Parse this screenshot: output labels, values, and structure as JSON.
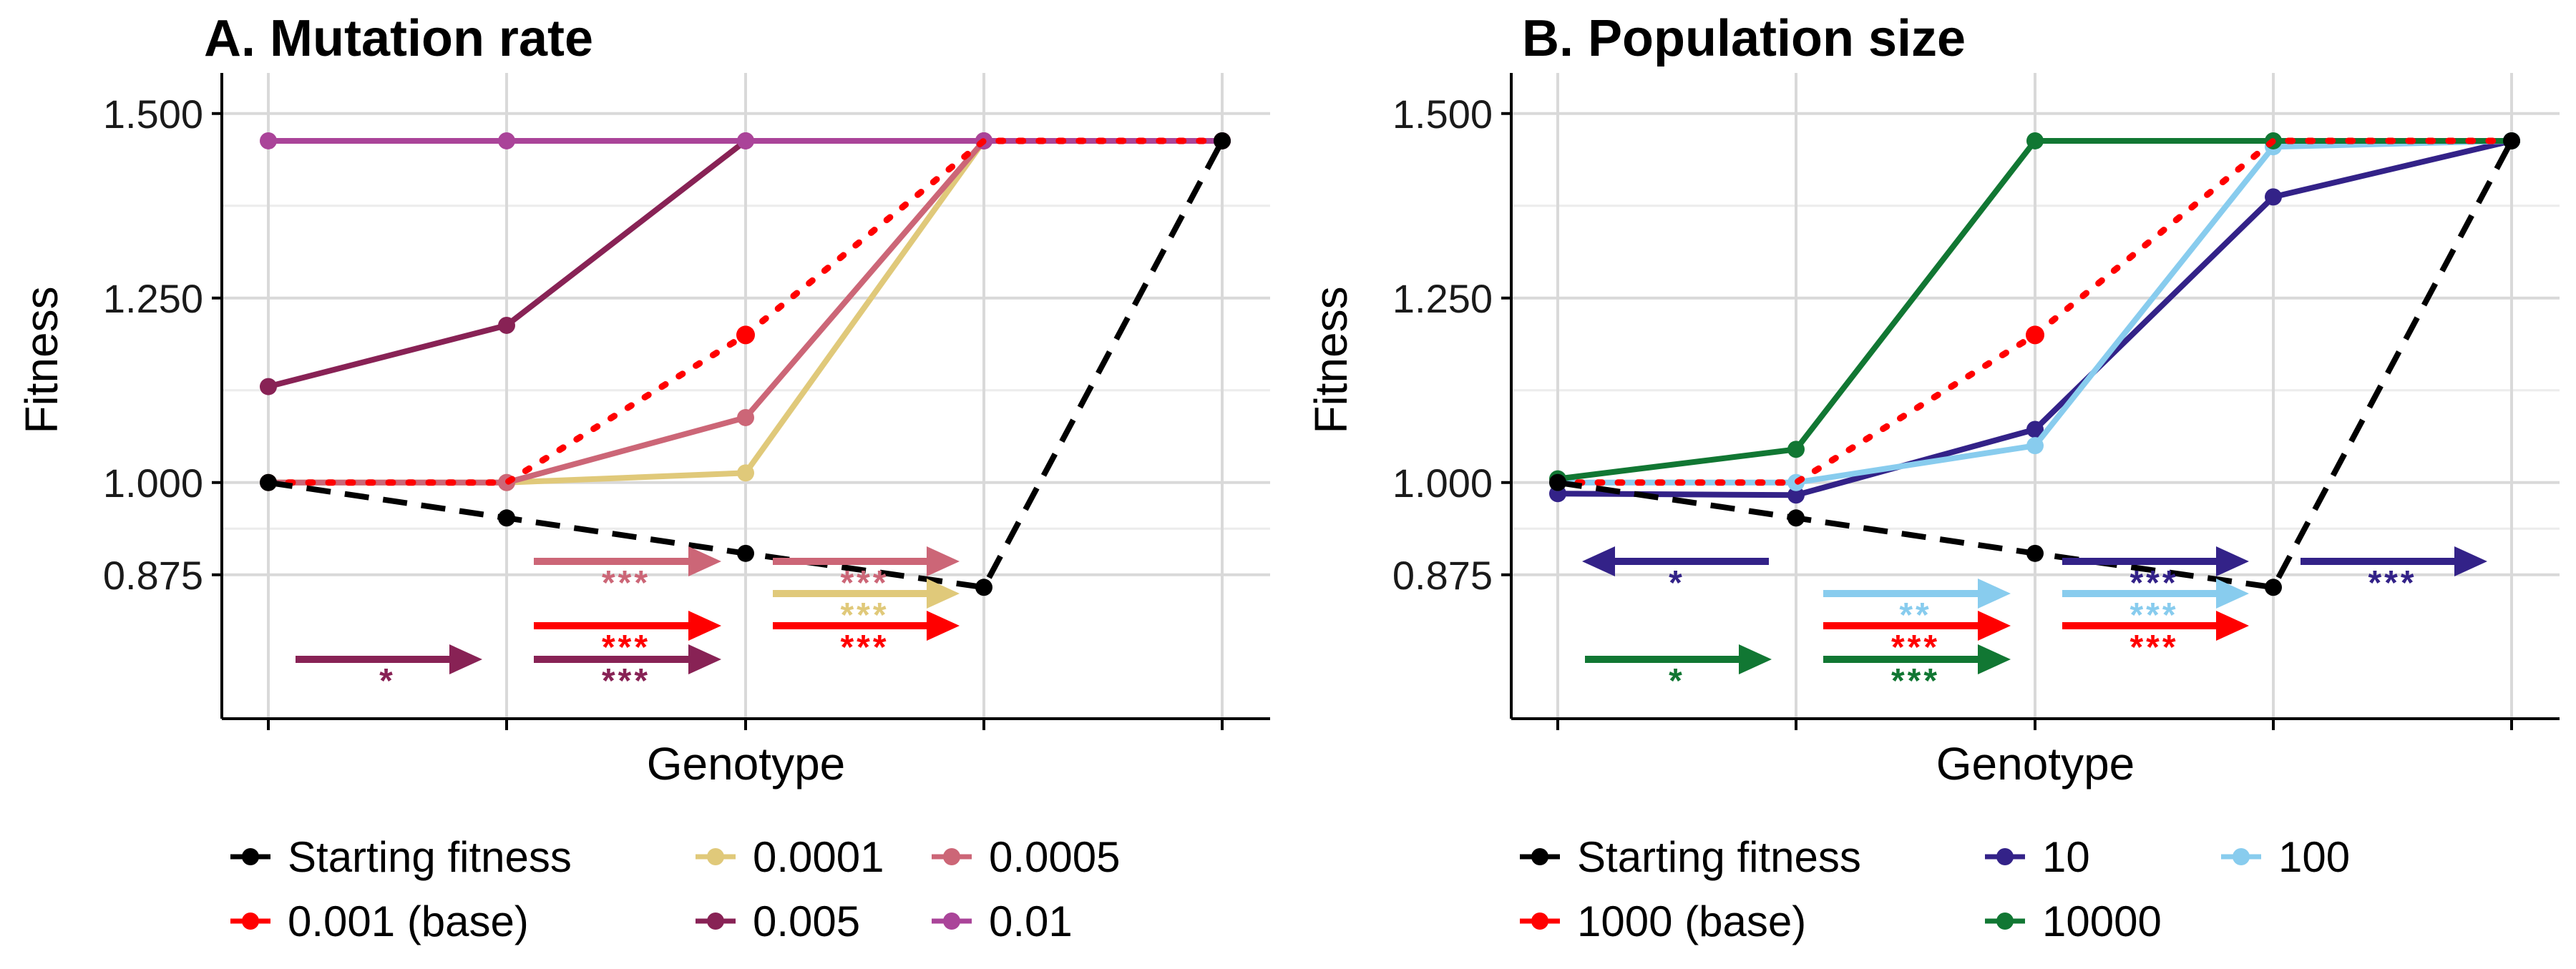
{
  "colors": {
    "starting": "#000000",
    "base": "#FF0000",
    "m0001": "#E0C97A",
    "m0005": "#CC6677",
    "m005": "#882255",
    "m01": "#AA4499",
    "p10": "#332288",
    "p100": "#88CCEE",
    "p10000": "#117733"
  },
  "chart_data": [
    {
      "type": "line",
      "title": "A. Mutation rate",
      "xlabel": "Genotype",
      "ylabel": "Fitness",
      "x": [
        1,
        2,
        3,
        4,
        5
      ],
      "ylim": [
        0.68,
        1.555
      ],
      "yticks": [
        "0.875",
        "1.000",
        "1.250",
        "1.500"
      ],
      "ytick_values": [
        0.875,
        1.0,
        1.25,
        1.5
      ],
      "grid": true,
      "legend_position": "bottom",
      "series": [
        {
          "key": "starting",
          "name": "Starting fitness",
          "color": "#000000",
          "dash": "long",
          "values": [
            1.0,
            0.952,
            0.904,
            0.858,
            1.463
          ]
        },
        {
          "key": "base",
          "name": "0.001 (base)",
          "color": "#FF0000",
          "dash": "dot",
          "values": [
            1.0,
            1.0,
            1.2,
            1.463,
            1.463
          ]
        },
        {
          "key": "m0001",
          "name": "0.0001",
          "color": "#E0C97A",
          "dash": "solid",
          "values": [
            1.0,
            1.0,
            1.013,
            1.463,
            1.463
          ]
        },
        {
          "key": "m0005",
          "name": "0.0005",
          "color": "#CC6677",
          "dash": "solid",
          "values": [
            1.0,
            1.0,
            1.088,
            1.463,
            1.463
          ]
        },
        {
          "key": "m005",
          "name": "0.005",
          "color": "#882255",
          "dash": "solid",
          "values": [
            1.13,
            1.213,
            1.463,
            1.463,
            1.463
          ]
        },
        {
          "key": "m01",
          "name": "0.01",
          "color": "#AA4499",
          "dash": "solid",
          "values": [
            1.463,
            1.463,
            1.463,
            1.463,
            1.463
          ]
        }
      ],
      "base_point": {
        "x": 3,
        "y": 1.2
      },
      "annotations": [
        {
          "from": 1,
          "to": 2,
          "row": 3,
          "color": "#882255",
          "label": "*"
        },
        {
          "from": 2,
          "to": 3,
          "row": 0,
          "color": "#CC6677",
          "label": "***"
        },
        {
          "from": 2,
          "to": 3,
          "row": 2,
          "color": "#FF0000",
          "label": "***"
        },
        {
          "from": 2,
          "to": 3,
          "row": 3,
          "color": "#882255",
          "label": "***"
        },
        {
          "from": 3,
          "to": 4,
          "row": 0,
          "color": "#CC6677",
          "label": "***"
        },
        {
          "from": 3,
          "to": 4,
          "row": 1,
          "color": "#E0C97A",
          "label": "***"
        },
        {
          "from": 3,
          "to": 4,
          "row": 2,
          "color": "#FF0000",
          "label": "***"
        }
      ],
      "legend_rows": [
        [
          "starting",
          "m0001",
          "m0005"
        ],
        [
          "base",
          "m005",
          "m01"
        ]
      ]
    },
    {
      "type": "line",
      "title": "B. Population size",
      "xlabel": "Genotype",
      "ylabel": "Fitness",
      "x": [
        1,
        2,
        3,
        4,
        5
      ],
      "ylim": [
        0.68,
        1.555
      ],
      "yticks": [
        "0.875",
        "1.000",
        "1.250",
        "1.500"
      ],
      "ytick_values": [
        0.875,
        1.0,
        1.25,
        1.5
      ],
      "grid": true,
      "legend_position": "bottom",
      "series": [
        {
          "key": "starting",
          "name": "Starting fitness",
          "color": "#000000",
          "dash": "long",
          "values": [
            1.0,
            0.952,
            0.904,
            0.858,
            1.463
          ]
        },
        {
          "key": "base",
          "name": "1000 (base)",
          "color": "#FF0000",
          "dash": "dot",
          "values": [
            1.0,
            1.0,
            1.2,
            1.463,
            1.463
          ]
        },
        {
          "key": "p10",
          "name": "10",
          "color": "#332288",
          "dash": "solid",
          "values": [
            0.985,
            0.983,
            1.072,
            1.387,
            1.463
          ]
        },
        {
          "key": "p100",
          "name": "100",
          "color": "#88CCEE",
          "dash": "solid",
          "values": [
            1.0,
            1.0,
            1.05,
            1.455,
            1.463
          ]
        },
        {
          "key": "p10000",
          "name": "10000",
          "color": "#117733",
          "dash": "solid",
          "values": [
            1.005,
            1.045,
            1.463,
            1.463,
            1.463
          ]
        }
      ],
      "base_point": {
        "x": 3,
        "y": 1.2
      },
      "annotations": [
        {
          "from": 2,
          "to": 1,
          "row": 0,
          "color": "#332288",
          "label": "*"
        },
        {
          "from": 1,
          "to": 2,
          "row": 3,
          "color": "#117733",
          "label": "*"
        },
        {
          "from": 2,
          "to": 3,
          "row": 1,
          "color": "#88CCEE",
          "label": "**"
        },
        {
          "from": 2,
          "to": 3,
          "row": 2,
          "color": "#FF0000",
          "label": "***"
        },
        {
          "from": 2,
          "to": 3,
          "row": 3,
          "color": "#117733",
          "label": "***"
        },
        {
          "from": 3,
          "to": 4,
          "row": 0,
          "color": "#332288",
          "label": "***"
        },
        {
          "from": 3,
          "to": 4,
          "row": 1,
          "color": "#88CCEE",
          "label": "***"
        },
        {
          "from": 3,
          "to": 4,
          "row": 2,
          "color": "#FF0000",
          "label": "***"
        },
        {
          "from": 4,
          "to": 5,
          "row": 0,
          "color": "#332288",
          "label": "***"
        }
      ],
      "legend_rows": [
        [
          "starting",
          "p10",
          "p100"
        ],
        [
          "base",
          "p10000"
        ]
      ]
    }
  ]
}
